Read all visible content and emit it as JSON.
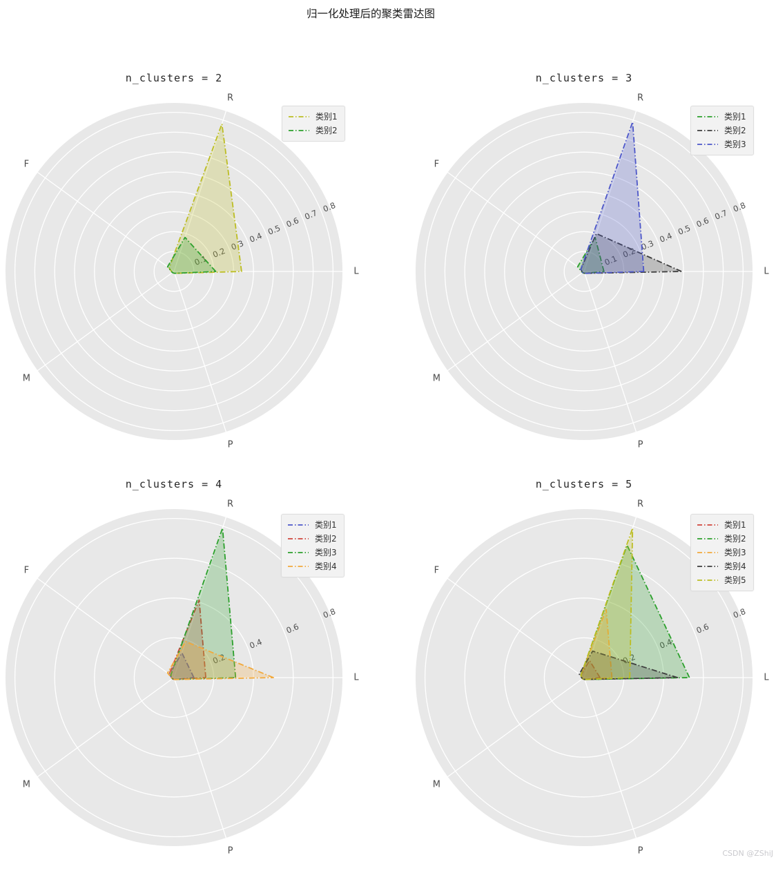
{
  "page": {
    "title": "归一化处理后的聚类雷达图",
    "watermark": "CSDN @ZShiJ"
  },
  "style": {
    "plot_bg": "#e8e8e8",
    "grid": "#ffffff",
    "tick_color": "#4d4d4d",
    "label_color": "#4d4d4d",
    "fill_opacity": 0.25
  },
  "chart_data": [
    {
      "type": "radar",
      "title": "n_clusters = 2",
      "axes": [
        "L",
        "R",
        "F",
        "M",
        "P"
      ],
      "axis_angles_deg": [
        0,
        72,
        144,
        216,
        288
      ],
      "rmax": 0.85,
      "grid_rings": [
        0.1,
        0.2,
        0.3,
        0.4,
        0.5,
        0.6,
        0.7,
        0.8
      ],
      "tick_values": [
        0.1,
        0.2,
        0.3,
        0.4,
        0.5,
        0.6,
        0.7,
        0.8
      ],
      "tick_labels": [
        "0.1",
        "0.2",
        "0.3",
        "0.4",
        "0.5",
        "0.6",
        "0.7",
        "0.8"
      ],
      "tick_angle_deg": 22.5,
      "legend_position": "top-right",
      "series": [
        {
          "name": "类别1",
          "color": "#bcbd22",
          "values": [
            0.34,
            0.78,
            0.03,
            0.01,
            0.01
          ]
        },
        {
          "name": "类别2",
          "color": "#2ca02c",
          "values": [
            0.21,
            0.18,
            0.04,
            0.01,
            0.01
          ]
        }
      ]
    },
    {
      "type": "radar",
      "title": "n_clusters = 3",
      "axes": [
        "L",
        "R",
        "F",
        "M",
        "P"
      ],
      "axis_angles_deg": [
        0,
        72,
        144,
        216,
        288
      ],
      "rmax": 0.85,
      "grid_rings": [
        0.1,
        0.2,
        0.3,
        0.4,
        0.5,
        0.6,
        0.7,
        0.8
      ],
      "tick_values": [
        0.1,
        0.2,
        0.3,
        0.4,
        0.5,
        0.6,
        0.7,
        0.8
      ],
      "tick_labels": [
        "0.1",
        "0.2",
        "0.3",
        "0.4",
        "0.5",
        "0.6",
        "0.7",
        "0.8"
      ],
      "tick_angle_deg": 22.5,
      "legend_position": "top-right",
      "series": [
        {
          "name": "类别1",
          "color": "#2ca02c",
          "values": [
            0.1,
            0.18,
            0.04,
            0.01,
            0.01
          ]
        },
        {
          "name": "类别2",
          "color": "#3d3d3d",
          "values": [
            0.49,
            0.2,
            0.02,
            0.01,
            0.01
          ]
        },
        {
          "name": "类别3",
          "color": "#4c56c9",
          "values": [
            0.3,
            0.79,
            0.02,
            0.01,
            0.01
          ]
        }
      ]
    },
    {
      "type": "radar",
      "title": "n_clusters = 4",
      "axes": [
        "L",
        "R",
        "F",
        "M",
        "P"
      ],
      "axis_angles_deg": [
        0,
        72,
        144,
        216,
        288
      ],
      "rmax": 0.85,
      "grid_rings": [
        0.2,
        0.4,
        0.6,
        0.8
      ],
      "tick_values": [
        0.2,
        0.4,
        0.6,
        0.8
      ],
      "tick_labels": [
        "0.2",
        "0.4",
        "0.6",
        "0.8"
      ],
      "tick_angle_deg": 22.5,
      "legend_position": "top-right",
      "series": [
        {
          "name": "类别1",
          "color": "#4c56c9",
          "values": [
            0.1,
            0.13,
            0.03,
            0.01,
            0.01
          ]
        },
        {
          "name": "类别2",
          "color": "#d0443c",
          "values": [
            0.16,
            0.41,
            0.03,
            0.01,
            0.01
          ]
        },
        {
          "name": "类别3",
          "color": "#2ca02c",
          "values": [
            0.31,
            0.79,
            0.02,
            0.01,
            0.01
          ]
        },
        {
          "name": "类别4",
          "color": "#f2a93b",
          "values": [
            0.5,
            0.19,
            0.04,
            0.01,
            0.01
          ]
        }
      ]
    },
    {
      "type": "radar",
      "title": "n_clusters = 5",
      "axes": [
        "L",
        "R",
        "F",
        "M",
        "P"
      ],
      "axis_angles_deg": [
        0,
        72,
        144,
        216,
        288
      ],
      "rmax": 0.85,
      "grid_rings": [
        0.2,
        0.4,
        0.6,
        0.8
      ],
      "tick_values": [
        0.2,
        0.4,
        0.6,
        0.8
      ],
      "tick_labels": [
        "0.2",
        "0.4",
        "0.6",
        "0.8"
      ],
      "tick_angle_deg": 22.5,
      "legend_position": "top-right",
      "series": [
        {
          "name": "类别1",
          "color": "#d0443c",
          "values": [
            0.08,
            0.09,
            0.02,
            0.01,
            0.01
          ]
        },
        {
          "name": "类别2",
          "color": "#2ca02c",
          "values": [
            0.53,
            0.7,
            0.02,
            0.01,
            0.01
          ]
        },
        {
          "name": "类别3",
          "color": "#f2a93b",
          "values": [
            0.14,
            0.36,
            0.02,
            0.01,
            0.01
          ]
        },
        {
          "name": "类别4",
          "color": "#3d3d3d",
          "values": [
            0.47,
            0.14,
            0.03,
            0.01,
            0.01
          ]
        },
        {
          "name": "类别5",
          "color": "#bcbd22",
          "values": [
            0.23,
            0.79,
            0.02,
            0.01,
            0.01
          ]
        }
      ]
    }
  ]
}
